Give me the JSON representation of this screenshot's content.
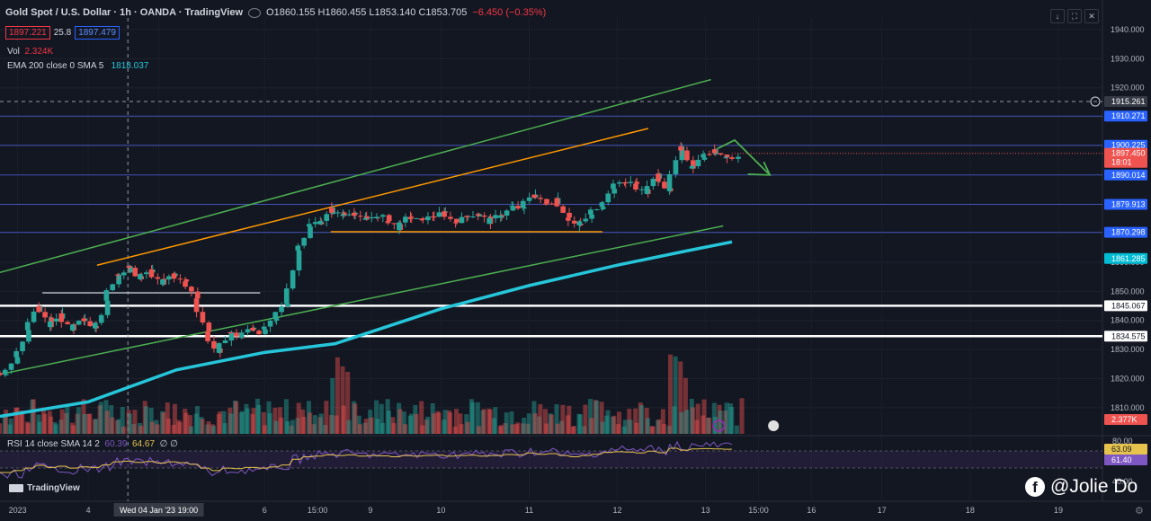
{
  "header": {
    "title": "Gold Spot / U.S. Dollar · 1h · OANDA · TradingView",
    "open": "O1860.155",
    "high": "H1860.455",
    "low": "L1853.140",
    "close": "C1853.705",
    "change": "−6.450 (−0.35%)",
    "sell_price": "1897.221",
    "spread": "25.8",
    "buy_price": "1897.479",
    "vol_label": "Vol",
    "vol_value": "2.324K",
    "ema_label": "EMA 200 close 0 SMA 5",
    "ema_value": "1818.037",
    "rsi_label": "RSI 14 close SMA 14 2",
    "rsi_v1": "60.39",
    "rsi_v2": "64.67",
    "rsi_extra": "∅ ∅",
    "tools": [
      "↓",
      "⛶",
      "✕"
    ],
    "logo": "TradingView"
  },
  "watermark": "@Jolie Do",
  "colors": {
    "bg": "#131722",
    "up": "#26a69a",
    "down": "#ef5350",
    "ema": "#26c6da",
    "channel": "#4caf50",
    "wedge": "#ff9800",
    "level": "#3f51b5",
    "white": "#ffffff",
    "rsi": "#7e57c2",
    "rsi_ma": "#e6c34d"
  },
  "chart_data": {
    "type": "candlestick",
    "y_ticks": [
      1940,
      1930,
      1920,
      1910,
      1900,
      1890,
      1880,
      1870,
      1860,
      1850,
      1840,
      1830,
      1820,
      1810
    ],
    "ylim": [
      1801,
      1944
    ],
    "x_ticks": [
      {
        "label": "2023",
        "x": 2
      },
      {
        "label": "4",
        "x": 10
      },
      {
        "label": "Wed 04 Jan '23   19:00",
        "x": 18
      },
      {
        "label": "6",
        "x": 30
      },
      {
        "label": "15:00",
        "x": 36
      },
      {
        "label": "9",
        "x": 42
      },
      {
        "label": "10",
        "x": 50
      },
      {
        "label": "11",
        "x": 60
      },
      {
        "label": "12",
        "x": 70
      },
      {
        "label": "13",
        "x": 80
      },
      {
        "label": "15:00",
        "x": 86
      },
      {
        "label": "16",
        "x": 92
      },
      {
        "label": "17",
        "x": 100
      },
      {
        "label": "18",
        "x": 110
      },
      {
        "label": "19",
        "x": 120
      }
    ],
    "xlim": [
      0,
      125
    ],
    "close_path": [
      1822,
      1828,
      1836,
      1845,
      1838,
      1842,
      1836,
      1840,
      1838,
      1846,
      1856,
      1858,
      1854,
      1857,
      1852,
      1856,
      1853,
      1848,
      1836,
      1828,
      1836,
      1834,
      1838,
      1836,
      1840,
      1846,
      1864,
      1872,
      1874,
      1878,
      1876,
      1878,
      1874,
      1876,
      1875,
      1872,
      1876,
      1874,
      1876,
      1877,
      1874,
      1876,
      1877,
      1874,
      1876,
      1879,
      1878,
      1884,
      1880,
      1882,
      1876,
      1872,
      1876,
      1880,
      1886,
      1888,
      1887,
      1884,
      1890,
      1885,
      1899,
      1893,
      1897,
      1898,
      1897,
      1896
    ],
    "close_path_x_start": 0,
    "close_path_x_end": 83,
    "last_close": 1897.45,
    "countdown": "18:01",
    "ema_points": [
      [
        0,
        1807
      ],
      [
        10,
        1812
      ],
      [
        20,
        1823
      ],
      [
        30,
        1829
      ],
      [
        38,
        1832
      ],
      [
        50,
        1844
      ],
      [
        60,
        1852
      ],
      [
        70,
        1859
      ],
      [
        78,
        1864
      ],
      [
        83,
        1867
      ]
    ],
    "price_labels": [
      {
        "value": 1915.261,
        "label": "1915.261",
        "style": "crosshair"
      },
      {
        "value": 1910.271,
        "label": "1910.271",
        "style": "level"
      },
      {
        "value": 1900.225,
        "label": "1900.225",
        "style": "level"
      },
      {
        "value": 1897.45,
        "label": "1897.450",
        "style": "last"
      },
      {
        "value": 1890.014,
        "label": "1890.014",
        "style": "level"
      },
      {
        "value": 1879.913,
        "label": "1879.913",
        "style": "level"
      },
      {
        "value": 1870.298,
        "label": "1870.298",
        "style": "level"
      },
      {
        "value": 1861.285,
        "label": "1861.285",
        "style": "ema"
      },
      {
        "value": 1845.067,
        "label": "1845.067",
        "style": "white"
      },
      {
        "value": 1834.575,
        "label": "1834.575",
        "style": "white"
      }
    ],
    "volume_label": "2.377K",
    "rsi_labels": [
      {
        "label": "63.09",
        "style": "rsi"
      },
      {
        "label": "61.40",
        "style": "rsi_ma"
      }
    ],
    "rsi_ticks": [
      80,
      40
    ]
  }
}
